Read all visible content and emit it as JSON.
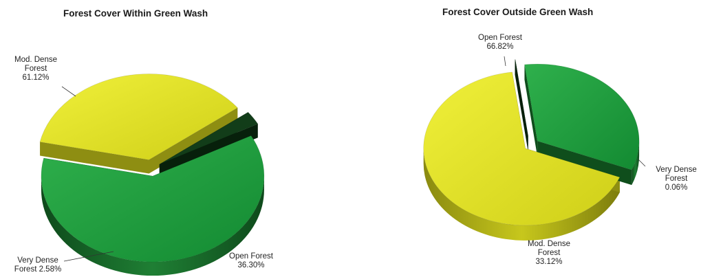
{
  "chart_data": [
    {
      "type": "pie",
      "title": "Forest Cover Within Green Wash",
      "slices": [
        {
          "name": "Mod. Dense Forest",
          "value": 61.12,
          "label_lines": [
            "Mod. Dense",
            "Forest",
            "61.12%"
          ],
          "color": "#1f9a3e"
        },
        {
          "name": "Open Forest",
          "value": 36.3,
          "label_lines": [
            "Open Forest",
            "36.30%"
          ],
          "color": "#dede22"
        },
        {
          "name": "Very Dense Forest",
          "value": 2.58,
          "label_lines": [
            "Very Dense",
            "Forest 2.58%"
          ],
          "color": "#0f3a17"
        }
      ]
    },
    {
      "type": "pie",
      "title": "Forest Cover Outside Green Wash",
      "slices": [
        {
          "name": "Open Forest",
          "value": 66.82,
          "label_lines": [
            "Open Forest",
            "66.82%"
          ],
          "color": "#dede22"
        },
        {
          "name": "Very Dense Forest",
          "value": 0.06,
          "label_lines": [
            "Very Dense",
            "Forest",
            "0.06%"
          ],
          "color": "#0f3a17"
        },
        {
          "name": "Mod. Dense Forest",
          "value": 33.12,
          "label_lines": [
            "Mod. Dense",
            "Forest",
            "33.12%"
          ],
          "color": "#1f9a3e"
        }
      ]
    }
  ]
}
